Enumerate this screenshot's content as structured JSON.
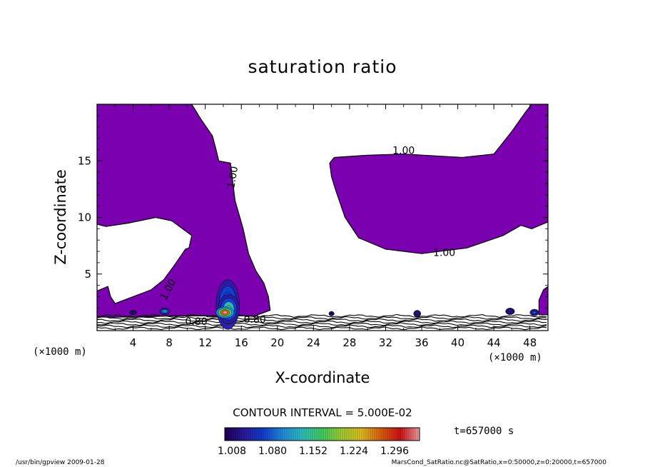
{
  "chart_data": {
    "type": "contour",
    "title": "saturation ratio",
    "xlabel": "X-coordinate",
    "ylabel": "Z-coordinate",
    "x_unit": "(×1000 m)",
    "y_unit": "(×1000 m)",
    "xlim": [
      0,
      50
    ],
    "ylim": [
      0,
      20
    ],
    "x_ticks": [
      4,
      8,
      12,
      16,
      20,
      24,
      28,
      32,
      36,
      40,
      44,
      48
    ],
    "y_ticks": [
      5,
      10,
      15
    ],
    "contour_interval_text": "CONTOUR INTERVAL = 5.000E-02",
    "time_text": "t=657000 s",
    "contour_labels": [
      "1.00",
      "1.00",
      "1.00",
      "1.00",
      "0.80",
      "0.80"
    ],
    "colorbar": {
      "tick_labels": [
        "1.008",
        "1.080",
        "1.152",
        "1.224",
        "1.296"
      ],
      "range": [
        1.008,
        1.296
      ],
      "colors": [
        "#1a0050",
        "#2a1aa0",
        "#1040d0",
        "#2090e0",
        "#30c0c0",
        "#40d060",
        "#a0d030",
        "#e0c020",
        "#e06010",
        "#d01010",
        "#f0a0a0"
      ]
    },
    "shaded_fill_color": "#7a00b0",
    "regions": [
      {
        "name": "upper-left",
        "points": [
          [
            0,
            20
          ],
          [
            10.5,
            20
          ],
          [
            11.5,
            18.7
          ],
          [
            12.8,
            17.2
          ],
          [
            13.2,
            16
          ],
          [
            13.5,
            15
          ],
          [
            14.8,
            14.8
          ],
          [
            15,
            13.5
          ],
          [
            15.3,
            11.5
          ],
          [
            16.2,
            9
          ],
          [
            16.8,
            6.8
          ],
          [
            17.6,
            5.3
          ],
          [
            18.5,
            4.2
          ],
          [
            19,
            3
          ],
          [
            19.2,
            1.8
          ],
          [
            17.5,
            1.3
          ],
          [
            14,
            1.3
          ],
          [
            8,
            1.3
          ],
          [
            5,
            1.2
          ],
          [
            1.5,
            1.2
          ],
          [
            0,
            1.2
          ],
          [
            0,
            3.5
          ],
          [
            1.2,
            3.9
          ],
          [
            1.5,
            3
          ],
          [
            2,
            2.4
          ],
          [
            4,
            3
          ],
          [
            6,
            3.6
          ],
          [
            7.4,
            4.5
          ],
          [
            8.6,
            5.8
          ],
          [
            9.8,
            7.2
          ],
          [
            10.2,
            7.3
          ],
          [
            10.5,
            8.4
          ],
          [
            8.3,
            9.7
          ],
          [
            6.5,
            10
          ],
          [
            3.5,
            9.5
          ],
          [
            1,
            9.2
          ],
          [
            0,
            9.4
          ]
        ]
      },
      {
        "name": "upper-right",
        "points": [
          [
            25.8,
            14.8
          ],
          [
            26.3,
            15.3
          ],
          [
            30,
            15.5
          ],
          [
            34,
            15.6
          ],
          [
            40.5,
            15.3
          ],
          [
            44,
            15.6
          ],
          [
            46,
            17.6
          ],
          [
            47.5,
            19.3
          ],
          [
            48.2,
            20
          ],
          [
            50,
            20
          ],
          [
            50,
            9.6
          ],
          [
            48.2,
            9
          ],
          [
            47,
            9.3
          ],
          [
            45,
            8.4
          ],
          [
            41,
            7.3
          ],
          [
            36,
            6.8
          ],
          [
            32,
            7.2
          ],
          [
            29,
            8.2
          ],
          [
            27.5,
            10
          ],
          [
            26.5,
            12.3
          ],
          [
            26,
            13.6
          ]
        ]
      },
      {
        "name": "lower-right",
        "points": [
          [
            49,
            1.4
          ],
          [
            49,
            2.7
          ],
          [
            49.5,
            3.6
          ],
          [
            50,
            3.9
          ],
          [
            50,
            1.4
          ]
        ]
      }
    ],
    "bands": [
      {
        "x": [
          0,
          50
        ],
        "z": [
          0.2,
          1.3
        ]
      }
    ],
    "hotspots": [
      {
        "x": 14.5,
        "z": 2.3,
        "rx": 1.3,
        "rz": 2.2,
        "value": 1.1
      },
      {
        "x": 14.6,
        "z": 1.9,
        "rx": 1.2,
        "rz": 1.3,
        "value": 1.15
      },
      {
        "x": 14.2,
        "z": 1.6,
        "rx": 1.0,
        "rz": 0.5,
        "value": 1.3
      },
      {
        "x": 7.5,
        "z": 1.7,
        "rx": 0.6,
        "rz": 0.3,
        "value": 1.12
      },
      {
        "x": 4.0,
        "z": 1.6,
        "rx": 0.4,
        "rz": 0.2,
        "value": 1.05
      },
      {
        "x": 26.0,
        "z": 1.5,
        "rx": 0.3,
        "rz": 0.2,
        "value": 1.05
      },
      {
        "x": 35.5,
        "z": 1.5,
        "rx": 0.4,
        "rz": 0.3,
        "value": 1.05
      },
      {
        "x": 45.8,
        "z": 1.7,
        "rx": 0.5,
        "rz": 0.3,
        "value": 1.05
      },
      {
        "x": 48.5,
        "z": 1.6,
        "rx": 0.5,
        "rz": 0.3,
        "value": 1.08
      }
    ]
  },
  "footer": {
    "left": "/usr/bin/gpview   2009-01-28",
    "right": "MarsCond_SatRatio.nc@SatRatio,x=0:50000,z=0:20000,t=657000"
  }
}
